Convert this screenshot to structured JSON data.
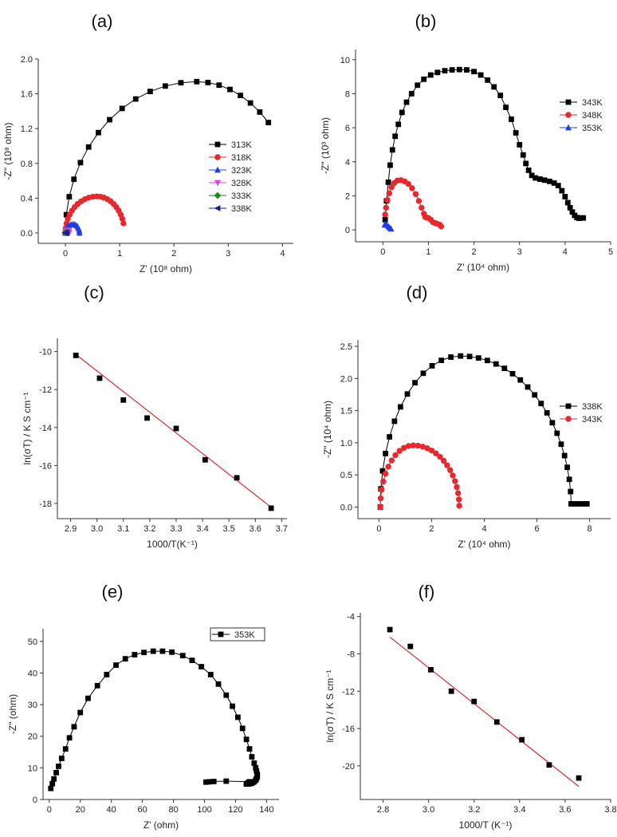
{
  "figure": {
    "panels": [
      {
        "id": "a",
        "label": "(a)",
        "type": "line",
        "xlabel": "Z' (10⁸ ohm)",
        "ylabel": "-Z\" (10⁸ ohm)",
        "xlim": [
          -0.5,
          4.2
        ],
        "ylim": [
          -0.12,
          2.0
        ],
        "xticks": [
          0,
          1,
          2,
          3,
          4
        ],
        "yticks": [
          0.0,
          0.4,
          0.8,
          1.2,
          1.6,
          2.0
        ],
        "ydecimals": 1,
        "legend": "center-right",
        "series": [
          {
            "name": "313K",
            "color": "#000000",
            "marker": "square",
            "curve": "arc",
            "arc": {
              "x0": 0.0,
              "x1": 3.74,
              "cx": 2.42,
              "ymax": 1.74,
              "yend": 1.27
            },
            "n": 20
          },
          {
            "name": "318K",
            "color": "#e8282e",
            "marker": "circle",
            "curve": "arc",
            "arc": {
              "x0": 0.0,
              "x1": 1.07,
              "cx": 0.58,
              "ymax": 0.42,
              "yend": 0.11
            },
            "n": 22
          },
          {
            "name": "323K",
            "color": "#1f3ce8",
            "marker": "triangle-up",
            "curve": "arc",
            "arc": {
              "x0": 0.0,
              "x1": 0.26,
              "cx": 0.14,
              "ymax": 0.1,
              "yend": 0.0
            },
            "n": 12
          },
          {
            "name": "328K",
            "color": "#e040e0",
            "marker": "triangle-down",
            "curve": "arc",
            "arc": {
              "x0": 0.0,
              "x1": 0.07,
              "cx": 0.035,
              "ymax": 0.03,
              "yend": 0.0
            },
            "n": 8
          },
          {
            "name": "333K",
            "color": "#1a8a1a",
            "marker": "diamond",
            "curve": "arc",
            "arc": {
              "x0": 0.0,
              "x1": 0.03,
              "cx": 0.015,
              "ymax": 0.01,
              "yend": 0.0
            },
            "n": 5
          },
          {
            "name": "338K",
            "color": "#1a1a9a",
            "marker": "triangle-left",
            "curve": "arc",
            "arc": {
              "x0": 0.0,
              "x1": 0.02,
              "cx": 0.01,
              "ymax": 0.005,
              "yend": 0.0
            },
            "n": 5
          }
        ]
      },
      {
        "id": "b",
        "label": "(b)",
        "type": "line",
        "xlabel": "Z' (10⁴ ohm)",
        "ylabel": "-Z\" (10³ ohm)",
        "xlim": [
          -0.6,
          5.0
        ],
        "ylim": [
          -0.7,
          10.6
        ],
        "xticks": [
          0,
          1,
          2,
          3,
          4,
          5
        ],
        "yticks": [
          0,
          2,
          4,
          6,
          8,
          10
        ],
        "ydecimals": 0,
        "legend": "top-right",
        "series": [
          {
            "name": "343K",
            "color": "#000000",
            "marker": "square",
            "curve": "points",
            "x": [
              0.05,
              0.08,
              0.12,
              0.16,
              0.21,
              0.27,
              0.34,
              0.42,
              0.52,
              0.63,
              0.76,
              0.9,
              1.05,
              1.2,
              1.36,
              1.52,
              1.68,
              1.84,
              2.0,
              2.15,
              2.3,
              2.44,
              2.58,
              2.7,
              2.82,
              2.92,
              3.0,
              3.08,
              3.14,
              3.2,
              3.27,
              3.35,
              3.45,
              3.55,
              3.66,
              3.76,
              3.85,
              3.93,
              4.0,
              4.06,
              4.11,
              4.16,
              4.21,
              4.26,
              4.31,
              4.36,
              4.4
            ],
            "y": [
              0.6,
              1.7,
              2.8,
              3.8,
              4.7,
              5.5,
              6.2,
              6.9,
              7.5,
              8.0,
              8.5,
              8.85,
              9.1,
              9.25,
              9.35,
              9.4,
              9.42,
              9.4,
              9.3,
              9.1,
              8.8,
              8.4,
              7.9,
              7.2,
              6.5,
              5.7,
              5.0,
              4.4,
              3.9,
              3.5,
              3.2,
              3.05,
              2.98,
              2.92,
              2.85,
              2.75,
              2.6,
              2.3,
              1.95,
              1.6,
              1.3,
              1.05,
              0.85,
              0.72,
              0.68,
              0.7,
              0.7
            ]
          },
          {
            "name": "348K",
            "color": "#e8282e",
            "marker": "circle",
            "curve": "points",
            "x": [
              0.05,
              0.07,
              0.1,
              0.14,
              0.19,
              0.25,
              0.32,
              0.4,
              0.48,
              0.56,
              0.64,
              0.72,
              0.79,
              0.85,
              0.9,
              0.93,
              0.96,
              1.0,
              1.05,
              1.1,
              1.15,
              1.2,
              1.25,
              1.28
            ],
            "y": [
              0.9,
              1.3,
              1.75,
              2.15,
              2.5,
              2.75,
              2.9,
              2.92,
              2.85,
              2.7,
              2.45,
              2.1,
              1.7,
              1.3,
              0.95,
              0.75,
              0.72,
              0.7,
              0.6,
              0.45,
              0.4,
              0.35,
              0.3,
              0.2
            ]
          },
          {
            "name": "353K",
            "color": "#1f3ce8",
            "marker": "triangle-up",
            "curve": "points",
            "x": [
              0.04,
              0.06,
              0.09,
              0.12,
              0.15,
              0.18
            ],
            "y": [
              0.3,
              0.32,
              0.28,
              0.2,
              0.12,
              0.06
            ]
          }
        ]
      },
      {
        "id": "c",
        "label": "(c)",
        "type": "scatter",
        "xlabel": "1000/T(K⁻¹)",
        "ylabel": "ln(σT) / K S cm⁻¹",
        "xlim": [
          2.85,
          3.72
        ],
        "ylim": [
          -18.8,
          -9.3
        ],
        "xticks": [
          2.9,
          3.0,
          3.1,
          3.2,
          3.3,
          3.4,
          3.5,
          3.6,
          3.7
        ],
        "yticks": [
          -18,
          -16,
          -14,
          -12,
          -10
        ],
        "ydecimals": 0,
        "xdecimals": 1,
        "series": [
          {
            "name": "data",
            "color": "#000000",
            "marker": "square",
            "curve": "none",
            "x": [
              2.92,
              3.01,
              3.1,
              3.19,
              3.3,
              3.41,
              3.53,
              3.66
            ],
            "y": [
              -10.2,
              -11.4,
              -12.55,
              -13.5,
              -14.05,
              -15.7,
              -16.65,
              -18.25
            ]
          }
        ],
        "fit": {
          "x": [
            2.92,
            3.66
          ],
          "y": [
            -10.15,
            -18.2
          ],
          "color": "#e8282e"
        }
      },
      {
        "id": "d",
        "label": "(d)",
        "type": "line",
        "xlabel": "Z' (10⁴ ohm)",
        "ylabel": "-Z\" (10⁴ ohm)",
        "xlim": [
          -0.8,
          8.8
        ],
        "ylim": [
          -0.18,
          2.6
        ],
        "xticks": [
          0,
          2,
          4,
          6,
          8
        ],
        "yticks": [
          0.0,
          0.5,
          1.0,
          1.5,
          2.0,
          2.5
        ],
        "ydecimals": 1,
        "legend": "center-right",
        "series": [
          {
            "name": "338K",
            "color": "#000000",
            "marker": "square",
            "curve": "arc",
            "arc": {
              "x0": 0.05,
              "x1": 7.3,
              "cx": 3.1,
              "ymax": 2.35,
              "yend": 0.05
            },
            "n": 32,
            "tail": {
              "x": [
                7.45,
                7.6,
                7.75,
                7.9
              ],
              "y": [
                0.05,
                0.05,
                0.05,
                0.05
              ]
            }
          },
          {
            "name": "343K",
            "color": "#e8282e",
            "marker": "circle",
            "curve": "arc",
            "arc": {
              "x0": 0.05,
              "x1": 3.05,
              "cx": 1.3,
              "ymax": 0.96,
              "yend": 0.02
            },
            "n": 26
          }
        ]
      },
      {
        "id": "e",
        "label": "(e)",
        "type": "line",
        "xlabel": "Z' (ohm)",
        "ylabel": "-Z\" (ohm)",
        "xlim": [
          -4,
          148
        ],
        "ylim": [
          0,
          54
        ],
        "xticks": [
          0,
          20,
          40,
          60,
          80,
          100,
          120,
          140
        ],
        "yticks": [
          0,
          10,
          20,
          30,
          40,
          50
        ],
        "ydecimals": 0,
        "legend": "top-right",
        "series": [
          {
            "name": "353K",
            "color": "#000000",
            "marker": "square",
            "curve": "points",
            "x": [
              1,
              2,
              3,
              4.5,
              6,
              8,
              10.5,
              13,
              16,
              20,
              25,
              31,
              37,
              43,
              49,
              55,
              61,
              67,
              73,
              79,
              86,
              92,
              98,
              104,
              109,
              114,
              118,
              121.5,
              124.5,
              127,
              129,
              130.5,
              132,
              133,
              133.5,
              134,
              134,
              133.5,
              133,
              132,
              131,
              130,
              129,
              128,
              127.5,
              127,
              127,
              128,
              128.5,
              129,
              114,
              106,
              103,
              101
            ],
            "y": [
              3.5,
              5,
              6.5,
              8.5,
              10.5,
              13,
              16,
              19.5,
              23,
              27.5,
              32,
              36,
              39.5,
              42.5,
              44.5,
              45.8,
              46.5,
              46.9,
              46.9,
              46.6,
              45.5,
              44,
              42,
              39.5,
              36.5,
              33,
              29.5,
              26,
              22.5,
              19,
              16,
              13.5,
              11.5,
              10,
              9,
              8,
              7.2,
              6.6,
              6.1,
              5.6,
              5.3,
              5.1,
              5.0,
              4.9,
              4.9,
              4.9,
              5.0,
              5.2,
              5.4,
              5.6,
              5.8,
              5.7,
              5.6,
              5.5
            ]
          }
        ]
      },
      {
        "id": "f",
        "label": "(f)",
        "type": "scatter",
        "xlabel": "1000/T (K⁻¹)",
        "ylabel": "ln(σT) / K S cm⁻¹",
        "xlim": [
          2.7,
          3.8
        ],
        "ylim": [
          -23.6,
          -3.6
        ],
        "xticks": [
          2.8,
          3.0,
          3.2,
          3.4,
          3.6,
          3.8
        ],
        "yticks": [
          -20,
          -16,
          -12,
          -8,
          -4
        ],
        "ydecimals": 0,
        "xdecimals": 1,
        "series": [
          {
            "name": "data",
            "color": "#000000",
            "marker": "square",
            "curve": "none",
            "x": [
              2.83,
              2.92,
              3.01,
              3.1,
              3.2,
              3.3,
              3.41,
              3.53,
              3.66
            ],
            "y": [
              -5.4,
              -7.2,
              -9.7,
              -12.0,
              -13.1,
              -15.3,
              -17.2,
              -19.9,
              -21.3
            ]
          }
        ],
        "fit": {
          "x": [
            2.83,
            3.66
          ],
          "y": [
            -6.2,
            -22.2
          ],
          "color": "#e8282e"
        }
      }
    ]
  }
}
